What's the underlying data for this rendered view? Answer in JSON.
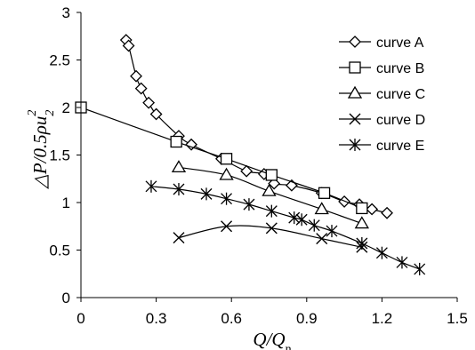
{
  "chart_data": {
    "type": "scatter",
    "title": "",
    "xlabel": {
      "main": "Q/Q",
      "sub": "n"
    },
    "ylabel": {
      "main": "△P/0.5ρu",
      "sub": "2",
      "sup": "2"
    },
    "xlim": [
      0,
      1.5
    ],
    "ylim": [
      0,
      3
    ],
    "xticks": [
      0,
      0.3,
      0.6,
      0.9,
      1.2,
      1.5
    ],
    "xtick_labels": [
      "0",
      "0.3",
      "0.6",
      "0.9",
      "1.2",
      "1.5"
    ],
    "yticks": [
      0,
      0.5,
      1,
      1.5,
      2,
      2.5,
      3
    ],
    "ytick_labels": [
      "0",
      "0.5",
      "1",
      "1.5",
      "2",
      "2.5",
      "3"
    ],
    "grid": false,
    "legend_position": "top-right",
    "series": [
      {
        "name": "curve A",
        "marker": "diamond",
        "x": [
          0.18,
          0.19,
          0.22,
          0.24,
          0.27,
          0.3,
          0.39,
          0.44,
          0.56,
          0.66,
          0.73,
          0.77,
          0.84,
          0.96,
          1.05,
          1.11,
          1.16,
          1.22
        ],
        "y": [
          2.71,
          2.65,
          2.33,
          2.2,
          2.05,
          1.93,
          1.7,
          1.61,
          1.46,
          1.33,
          1.3,
          1.2,
          1.18,
          1.1,
          1.01,
          0.98,
          0.93,
          0.89
        ]
      },
      {
        "name": "curve B",
        "marker": "square",
        "x": [
          0,
          0.38,
          0.58,
          0.76,
          0.97,
          1.12
        ],
        "y": [
          2.0,
          1.64,
          1.46,
          1.29,
          1.1,
          0.94
        ]
      },
      {
        "name": "curve C",
        "marker": "triangle",
        "x": [
          0.39,
          0.58,
          0.75,
          0.96,
          1.12
        ],
        "y": [
          1.37,
          1.29,
          1.12,
          0.93,
          0.78
        ]
      },
      {
        "name": "curve D",
        "marker": "x",
        "x": [
          0.39,
          0.58,
          0.76,
          0.96,
          1.12
        ],
        "y": [
          0.63,
          0.75,
          0.73,
          0.62,
          0.53
        ]
      },
      {
        "name": "curve E",
        "marker": "asterisk",
        "x": [
          0.28,
          0.39,
          0.5,
          0.58,
          0.67,
          0.76,
          0.85,
          0.88,
          0.93,
          1.0,
          1.12,
          1.2,
          1.28,
          1.35
        ],
        "y": [
          1.17,
          1.14,
          1.09,
          1.04,
          0.98,
          0.91,
          0.84,
          0.82,
          0.76,
          0.7,
          0.57,
          0.47,
          0.37,
          0.3
        ]
      }
    ]
  }
}
